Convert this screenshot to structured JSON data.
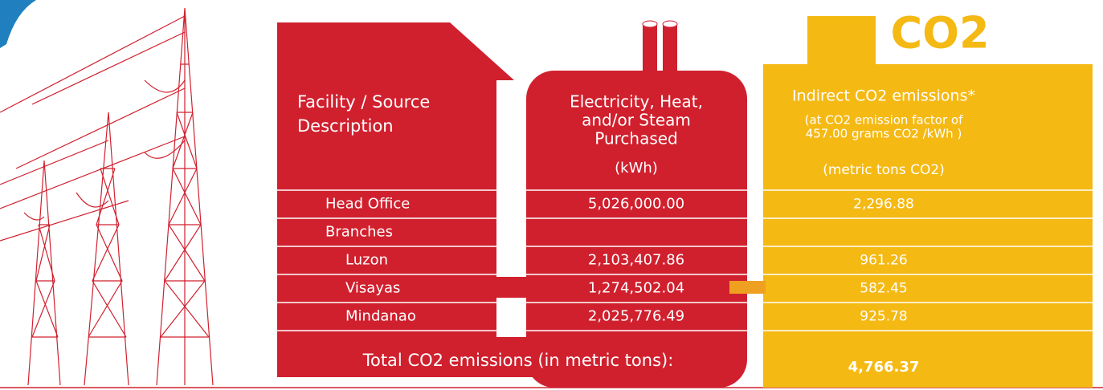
{
  "logo": "CO2",
  "columns": {
    "facility": {
      "lines": [
        "Facility / Source",
        "Description"
      ]
    },
    "energy": {
      "lines": [
        "Electricity, Heat,",
        "and/or Steam",
        "Purchased"
      ],
      "unit": "(kWh)"
    },
    "emissions": {
      "title": "Indirect CO2 emissions*",
      "note": [
        "(at CO2  emission factor of",
        "457.00 grams CO2 /kWh )"
      ],
      "unit": "(metric tons CO2)"
    }
  },
  "rows": [
    {
      "label": "Head Office",
      "energy": "5,026,000.00",
      "emissions": "2,296.88"
    },
    {
      "label": "Branches"
    },
    {
      "label": "Luzon",
      "energy": "2,103,407.86",
      "emissions": "961.26"
    },
    {
      "label": "Visayas",
      "energy": "1,274,502.04",
      "emissions": "582.45"
    },
    {
      "label": "Mindanao",
      "energy": "2,025,776.49",
      "emissions": "925.78"
    }
  ],
  "total": {
    "label": "Total CO2 emissions (in metric tons):",
    "value": "4,766.37"
  }
}
